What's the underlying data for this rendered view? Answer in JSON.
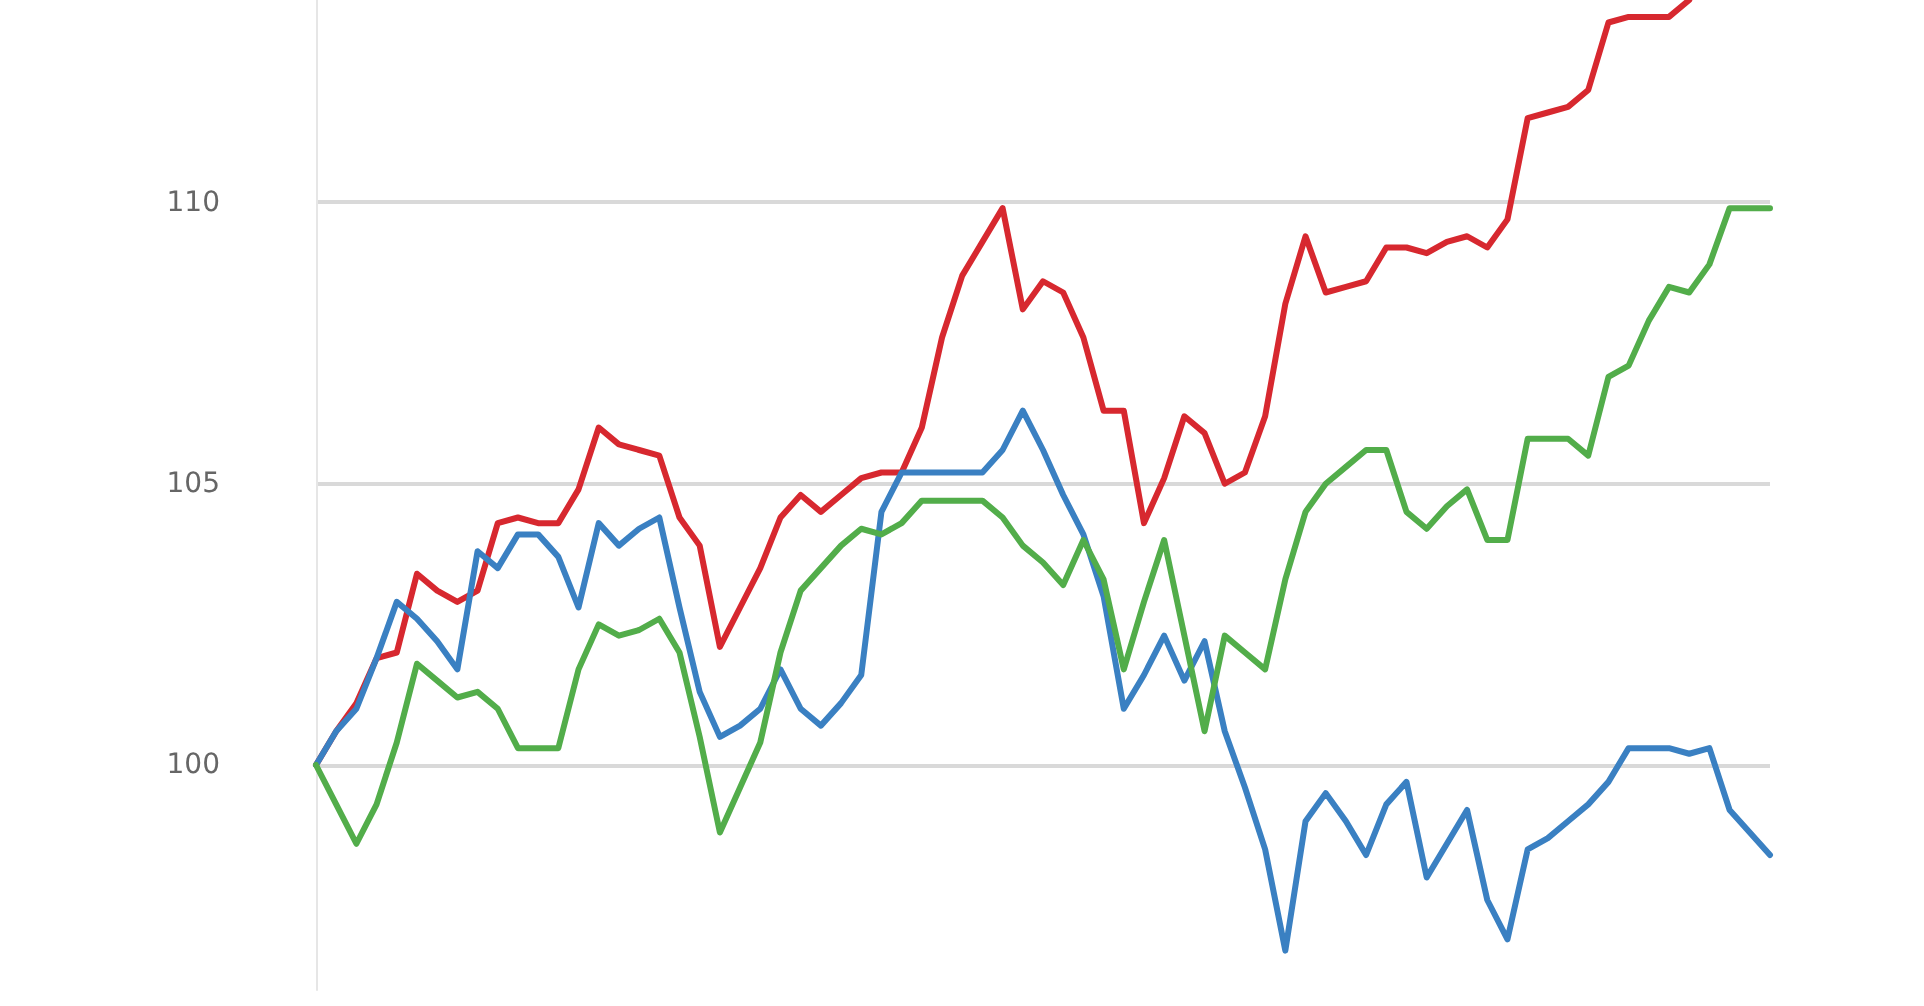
{
  "chart_data": {
    "type": "line",
    "categories": [
      null,
      null,
      null,
      null,
      null,
      null,
      null,
      null,
      null,
      null,
      null,
      null,
      null,
      null,
      null,
      null,
      null,
      null,
      null,
      null,
      null,
      null,
      null,
      null,
      null,
      null,
      null,
      null,
      null,
      null,
      null,
      null,
      null,
      null,
      null,
      null,
      null,
      null,
      null,
      null,
      null,
      null,
      null,
      null,
      null,
      null,
      null,
      null,
      null,
      null,
      null,
      null,
      null,
      null,
      null,
      null,
      null,
      null,
      null,
      null,
      null,
      null,
      null,
      null,
      null,
      null,
      null,
      null,
      null,
      null,
      null,
      null,
      null
    ],
    "series": [
      {
        "color": "#d7282f",
        "values": [
          100.0,
          100.6,
          101.1,
          101.9,
          102.0,
          103.4,
          103.1,
          102.9,
          103.1,
          104.3,
          104.4,
          104.3,
          104.3,
          104.9,
          106.0,
          105.7,
          105.6,
          105.5,
          104.4,
          103.9,
          102.1,
          102.8,
          103.5,
          104.4,
          104.8,
          104.5,
          104.8,
          105.1,
          105.2,
          105.2,
          106.0,
          107.6,
          108.7,
          109.3,
          109.9,
          108.1,
          108.6,
          108.4,
          107.6,
          106.3,
          106.3,
          104.3,
          105.1,
          106.2,
          105.9,
          105.0,
          105.2,
          106.2,
          108.2,
          109.4,
          108.4,
          108.5,
          108.6,
          109.2,
          109.2,
          109.1,
          109.3,
          109.4,
          109.2,
          109.7,
          111.5,
          111.6,
          111.7,
          112.0,
          113.2,
          113.3,
          113.3,
          113.3,
          113.6,
          null,
          null,
          null,
          null
        ]
      },
      {
        "color": "#3a80c2",
        "values": [
          100.0,
          100.6,
          101.0,
          101.9,
          102.9,
          102.6,
          102.2,
          101.7,
          103.8,
          103.5,
          104.1,
          104.1,
          103.7,
          102.8,
          104.3,
          103.9,
          104.2,
          104.4,
          102.8,
          101.3,
          100.5,
          100.7,
          101.0,
          101.7,
          101.0,
          100.7,
          101.1,
          101.6,
          104.5,
          105.2,
          105.2,
          105.2,
          105.2,
          105.2,
          105.6,
          106.3,
          105.6,
          104.8,
          104.1,
          103.0,
          101.0,
          101.6,
          102.3,
          101.5,
          102.2,
          100.6,
          99.6,
          98.5,
          96.7,
          99.0,
          99.5,
          99.0,
          98.4,
          99.3,
          99.7,
          98.0,
          98.6,
          99.2,
          97.6,
          96.9,
          98.5,
          98.7,
          99.0,
          99.3,
          99.7,
          100.3,
          100.3,
          100.3,
          100.2,
          100.3,
          99.2,
          98.8,
          98.4
        ]
      },
      {
        "color": "#52ad4a",
        "values": [
          100.0,
          99.3,
          98.6,
          99.3,
          100.4,
          101.8,
          101.5,
          101.2,
          101.3,
          101.0,
          100.3,
          100.3,
          100.3,
          101.7,
          102.5,
          102.3,
          102.4,
          102.6,
          102.0,
          100.5,
          98.8,
          99.6,
          100.4,
          102.0,
          103.1,
          103.5,
          103.9,
          104.2,
          104.1,
          104.3,
          104.7,
          104.7,
          104.7,
          104.7,
          104.4,
          103.9,
          103.6,
          103.2,
          104.0,
          103.3,
          101.7,
          102.9,
          104.0,
          102.3,
          100.6,
          102.3,
          102.0,
          101.7,
          103.3,
          104.5,
          105.0,
          105.3,
          105.6,
          105.6,
          104.5,
          104.2,
          104.6,
          104.9,
          104.0,
          104.0,
          105.8,
          105.8,
          105.8,
          105.5,
          106.9,
          107.1,
          107.9,
          108.5,
          108.4,
          108.9,
          109.9,
          109.9,
          109.9
        ]
      }
    ],
    "ylim": [
      96,
      113.6
    ],
    "yticks": [
      100,
      105,
      110
    ],
    "grid": "y",
    "legend": false,
    "marker": "none",
    "line_style": "solid"
  }
}
